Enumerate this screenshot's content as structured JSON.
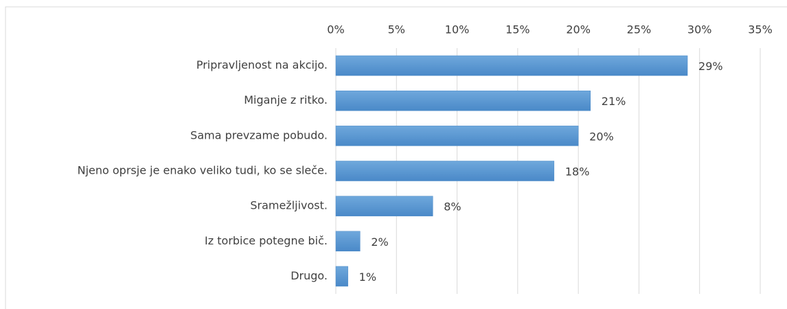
{
  "chart_data": {
    "type": "bar",
    "orientation": "horizontal",
    "categories": [
      "Pripravljenost na akcijo.",
      "Miganje z ritko.",
      "Sama prevzame pobudo.",
      "Njeno oprsje je enako veliko tudi, ko se sleče.",
      "Sramežljivost.",
      "Iz torbice potegne bič.",
      "Drugo."
    ],
    "values": [
      29,
      21,
      20,
      18,
      8,
      2,
      1
    ],
    "value_labels": [
      "29%",
      "21%",
      "20%",
      "18%",
      "8%",
      "2%",
      "1%"
    ],
    "color": "#5b9bd5",
    "xlim": [
      0,
      35
    ],
    "xticks": [
      {
        "value": 0,
        "label": "0%"
      },
      {
        "value": 5,
        "label": "5%"
      },
      {
        "value": 10,
        "label": "10%"
      },
      {
        "value": 15,
        "label": "15%"
      },
      {
        "value": 20,
        "label": "20%"
      },
      {
        "value": 25,
        "label": "25%"
      },
      {
        "value": 30,
        "label": "30%"
      },
      {
        "value": 35,
        "label": "35%"
      }
    ],
    "grid": true
  }
}
